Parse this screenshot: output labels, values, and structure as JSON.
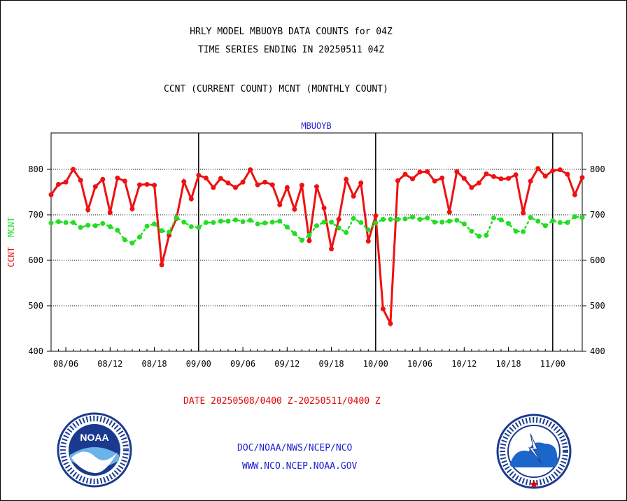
{
  "titles": {
    "line1": "HRLY MODEL MBUOYB DATA COUNTS for 04Z",
    "line2": "TIME SERIES ENDING IN 20250511 04Z",
    "line3": "CCNT (CURRENT COUNT) MCNT (MONTHLY COUNT)"
  },
  "date_range": "DATE 20250508/0400 Z-20250511/0400 Z",
  "footer": {
    "line1": "DOC/NOAA/NWS/NCEP/NCO",
    "line2": "WWW.NCO.NCEP.NOAA.GOV"
  },
  "logos": {
    "left": {
      "icon": "noaa-logo",
      "text": "NOAA",
      "ring_text": "NATIONAL OCEANIC AND ATMOSPHERIC ADMINISTRATION · U.S. DEPARTMENT OF COMMERCE"
    },
    "right": {
      "icon": "nws-logo",
      "ring_text": "NATIONAL WEATHER SERVICE"
    }
  },
  "chart_data": {
    "type": "line",
    "title": "MBUOYB",
    "ylabel_left": {
      "first": "CCNT",
      "second": "MCNT"
    },
    "ylim": [
      400,
      880
    ],
    "yticks": [
      400,
      500,
      600,
      700,
      800
    ],
    "grid": "horizontal dotted at 500, 600, 700, 800; vertical solid at day boundaries",
    "xlim": [
      0,
      72
    ],
    "xticks": [
      {
        "x": 2,
        "label": "08/06"
      },
      {
        "x": 8,
        "label": "08/12"
      },
      {
        "x": 14,
        "label": "08/18"
      },
      {
        "x": 20,
        "label": "09/00"
      },
      {
        "x": 26,
        "label": "09/06"
      },
      {
        "x": 32,
        "label": "09/12"
      },
      {
        "x": 38,
        "label": "09/18"
      },
      {
        "x": 44,
        "label": "10/00"
      },
      {
        "x": 50,
        "label": "10/06"
      },
      {
        "x": 56,
        "label": "10/12"
      },
      {
        "x": 62,
        "label": "10/18"
      },
      {
        "x": 68,
        "label": "11/00"
      }
    ],
    "day_boundaries": [
      20,
      44,
      68
    ],
    "series": [
      {
        "name": "CCNT",
        "color": "#ee1111",
        "values": [
          744,
          767,
          772,
          800,
          776,
          711,
          762,
          778,
          705,
          781,
          774,
          713,
          766,
          767,
          765,
          590,
          655,
          692,
          773,
          735,
          787,
          781,
          760,
          780,
          770,
          760,
          772,
          799,
          766,
          772,
          766,
          722,
          760,
          712,
          765,
          643,
          762,
          715,
          625,
          690,
          778,
          741,
          770,
          642,
          698,
          493,
          461,
          775,
          789,
          779,
          794,
          795,
          774,
          781,
          706,
          795,
          780,
          760,
          770,
          790,
          784,
          779,
          780,
          788,
          704,
          774,
          802,
          785,
          797,
          799,
          789,
          744,
          782
        ]
      },
      {
        "name": "MCNT",
        "color": "#22dd22",
        "values": [
          682,
          685,
          683,
          683,
          672,
          677,
          676,
          681,
          674,
          666,
          645,
          638,
          651,
          675,
          680,
          665,
          662,
          694,
          684,
          674,
          672,
          683,
          683,
          686,
          686,
          689,
          685,
          688,
          680,
          682,
          684,
          686,
          673,
          659,
          644,
          655,
          676,
          684,
          684,
          671,
          661,
          692,
          683,
          667,
          682,
          690,
          690,
          690,
          691,
          695,
          690,
          693,
          684,
          684,
          686,
          688,
          680,
          664,
          653,
          655,
          693,
          689,
          681,
          664,
          663,
          694,
          686,
          676,
          687,
          683,
          683,
          696,
          694
        ]
      }
    ]
  }
}
